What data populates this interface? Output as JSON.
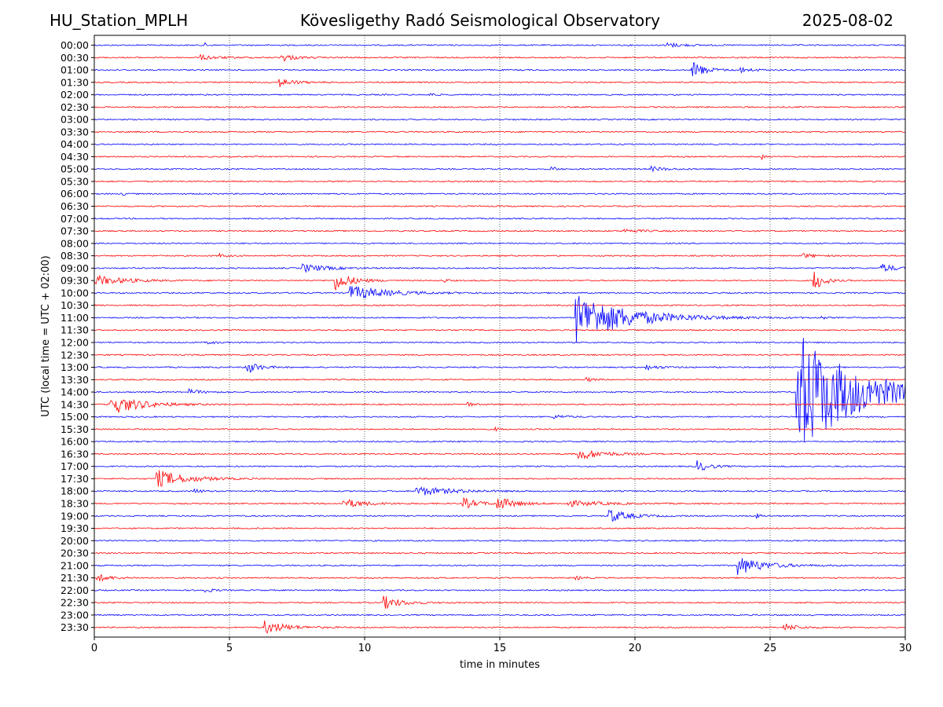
{
  "header": {
    "station": "HU_Station_MPLH",
    "observatory": "Kövesligethy Radó Seismological Observatory",
    "date": "2025-08-02"
  },
  "chart_data": {
    "type": "line",
    "title": "Kövesligethy Radó Seismological Observatory",
    "xlabel": "time in minutes",
    "ylabel": "UTC (local time = UTC + 02:00)",
    "xlim": [
      0,
      30
    ],
    "xticks": [
      0,
      5,
      10,
      15,
      20,
      25,
      30
    ],
    "vertical_gridlines": [
      5,
      10,
      15,
      20,
      25
    ],
    "grid": "vertical dotted",
    "trace_colors": [
      "#0000ff",
      "#ff0000"
    ],
    "rows": [
      "00:00",
      "00:30",
      "01:00",
      "01:30",
      "02:00",
      "02:30",
      "03:00",
      "03:30",
      "04:00",
      "04:30",
      "05:00",
      "05:30",
      "06:00",
      "06:30",
      "07:00",
      "07:30",
      "08:00",
      "08:30",
      "09:00",
      "09:30",
      "10:00",
      "10:30",
      "11:00",
      "11:30",
      "12:00",
      "12:30",
      "13:00",
      "13:30",
      "14:00",
      "14:30",
      "15:00",
      "15:30",
      "16:00",
      "16:30",
      "17:00",
      "17:30",
      "18:00",
      "18:30",
      "19:00",
      "19:30",
      "20:00",
      "20:30",
      "21:00",
      "21:30",
      "22:00",
      "22:30",
      "23:00",
      "23:30"
    ],
    "events": [
      {
        "row": "00:00",
        "t": 4.1,
        "amp": 0.4,
        "dur": 0.2
      },
      {
        "row": "00:00",
        "t": 21.1,
        "amp": 0.55,
        "dur": 1.2
      },
      {
        "row": "00:30",
        "t": 3.9,
        "amp": 0.5,
        "dur": 1.3
      },
      {
        "row": "00:30",
        "t": 6.9,
        "amp": 0.9,
        "dur": 0.9
      },
      {
        "row": "01:00",
        "t": 22.1,
        "amp": 2.2,
        "dur": 0.8
      },
      {
        "row": "01:00",
        "t": 23.8,
        "amp": 0.7,
        "dur": 0.8
      },
      {
        "row": "01:30",
        "t": 6.8,
        "amp": 1.0,
        "dur": 1.0
      },
      {
        "row": "02:00",
        "t": 12.4,
        "amp": 0.4,
        "dur": 0.4
      },
      {
        "row": "04:30",
        "t": 24.7,
        "amp": 0.5,
        "dur": 0.2
      },
      {
        "row": "05:00",
        "t": 16.9,
        "amp": 0.7,
        "dur": 0.3
      },
      {
        "row": "05:00",
        "t": 20.6,
        "amp": 0.5,
        "dur": 1.0
      },
      {
        "row": "06:00",
        "t": 1.0,
        "amp": 0.4,
        "dur": 0.3
      },
      {
        "row": "07:30",
        "t": 19.6,
        "amp": 0.4,
        "dur": 1.2
      },
      {
        "row": "08:30",
        "t": 4.6,
        "amp": 0.5,
        "dur": 0.4
      },
      {
        "row": "08:30",
        "t": 26.2,
        "amp": 0.5,
        "dur": 0.8
      },
      {
        "row": "09:00",
        "t": 7.7,
        "amp": 0.9,
        "dur": 1.6
      },
      {
        "row": "09:00",
        "t": 29.1,
        "amp": 1.0,
        "dur": 0.9
      },
      {
        "row": "09:30",
        "t": 0.0,
        "amp": 1.1,
        "dur": 2.0
      },
      {
        "row": "09:30",
        "t": 8.9,
        "amp": 2.2,
        "dur": 1.1
      },
      {
        "row": "09:30",
        "t": 12.9,
        "amp": 0.5,
        "dur": 0.3
      },
      {
        "row": "09:30",
        "t": 26.6,
        "amp": 2.6,
        "dur": 0.6
      },
      {
        "row": "10:00",
        "t": 9.4,
        "amp": 1.6,
        "dur": 2.5
      },
      {
        "row": "11:00",
        "t": 17.8,
        "amp": 5.5,
        "dur": 3.5
      },
      {
        "row": "11:00",
        "t": 26.9,
        "amp": 0.5,
        "dur": 0.2
      },
      {
        "row": "12:00",
        "t": 4.2,
        "amp": 0.4,
        "dur": 0.5
      },
      {
        "row": "13:00",
        "t": 5.6,
        "amp": 1.6,
        "dur": 0.8
      },
      {
        "row": "13:00",
        "t": 20.4,
        "amp": 0.5,
        "dur": 1.0
      },
      {
        "row": "13:30",
        "t": 18.2,
        "amp": 0.4,
        "dur": 0.5
      },
      {
        "row": "14:00",
        "t": 3.5,
        "amp": 0.6,
        "dur": 0.8
      },
      {
        "row": "14:00",
        "t": 25.95,
        "amp": 14.0,
        "dur": 4.0
      },
      {
        "row": "14:30",
        "t": 0.6,
        "amp": 2.2,
        "dur": 2.0
      },
      {
        "row": "14:30",
        "t": 13.8,
        "amp": 0.5,
        "dur": 0.4
      },
      {
        "row": "15:00",
        "t": 17.0,
        "amp": 0.4,
        "dur": 1.0
      },
      {
        "row": "15:30",
        "t": 14.8,
        "amp": 0.4,
        "dur": 0.3
      },
      {
        "row": "16:30",
        "t": 17.9,
        "amp": 1.3,
        "dur": 1.6
      },
      {
        "row": "17:00",
        "t": 22.3,
        "amp": 1.2,
        "dur": 0.8
      },
      {
        "row": "17:30",
        "t": 2.3,
        "amp": 1.9,
        "dur": 2.0
      },
      {
        "row": "18:00",
        "t": 3.7,
        "amp": 0.5,
        "dur": 0.5
      },
      {
        "row": "18:00",
        "t": 11.9,
        "amp": 1.0,
        "dur": 2.5
      },
      {
        "row": "18:30",
        "t": 9.2,
        "amp": 1.0,
        "dur": 1.5
      },
      {
        "row": "18:30",
        "t": 13.6,
        "amp": 1.3,
        "dur": 1.0
      },
      {
        "row": "18:30",
        "t": 14.9,
        "amp": 1.4,
        "dur": 1.2
      },
      {
        "row": "18:30",
        "t": 17.5,
        "amp": 0.6,
        "dur": 2.5
      },
      {
        "row": "19:00",
        "t": 19.0,
        "amp": 1.6,
        "dur": 1.3
      },
      {
        "row": "19:00",
        "t": 24.5,
        "amp": 0.5,
        "dur": 0.3
      },
      {
        "row": "21:00",
        "t": 23.8,
        "amp": 2.0,
        "dur": 1.8
      },
      {
        "row": "21:30",
        "t": 0.1,
        "amp": 0.8,
        "dur": 1.0
      },
      {
        "row": "21:30",
        "t": 17.8,
        "amp": 0.4,
        "dur": 0.6
      },
      {
        "row": "22:00",
        "t": 4.1,
        "amp": 0.5,
        "dur": 0.5
      },
      {
        "row": "22:30",
        "t": 10.7,
        "amp": 1.4,
        "dur": 1.2
      },
      {
        "row": "23:30",
        "t": 6.3,
        "amp": 1.4,
        "dur": 1.5
      },
      {
        "row": "23:30",
        "t": 25.5,
        "amp": 0.9,
        "dur": 0.9
      }
    ]
  }
}
